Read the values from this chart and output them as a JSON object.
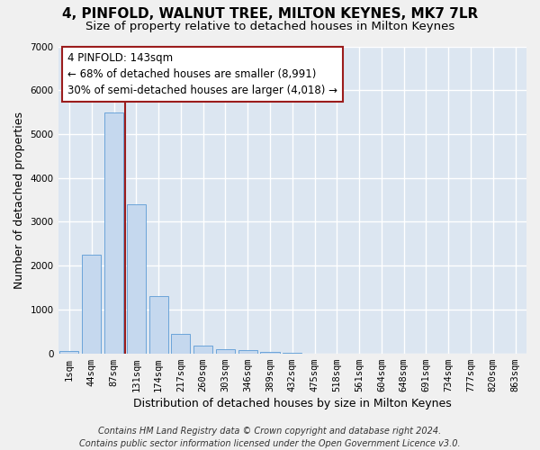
{
  "title": "4, PINFOLD, WALNUT TREE, MILTON KEYNES, MK7 7LR",
  "subtitle": "Size of property relative to detached houses in Milton Keynes",
  "xlabel": "Distribution of detached houses by size in Milton Keynes",
  "ylabel": "Number of detached properties",
  "categories": [
    "1sqm",
    "44sqm",
    "87sqm",
    "131sqm",
    "174sqm",
    "217sqm",
    "260sqm",
    "303sqm",
    "346sqm",
    "389sqm",
    "432sqm",
    "475sqm",
    "518sqm",
    "561sqm",
    "604sqm",
    "648sqm",
    "691sqm",
    "734sqm",
    "777sqm",
    "820sqm",
    "863sqm"
  ],
  "values": [
    50,
    2250,
    5500,
    3400,
    1300,
    450,
    175,
    100,
    75,
    30,
    10,
    0,
    0,
    0,
    0,
    0,
    0,
    0,
    0,
    0,
    0
  ],
  "bar_color": "#c5d8ee",
  "bar_edge_color": "#5b9bd5",
  "vline_x": 2.5,
  "vline_color": "#9b1c1c",
  "annotation_text": "4 PINFOLD: 143sqm\n← 68% of detached houses are smaller (8,991)\n30% of semi-detached houses are larger (4,018) →",
  "annotation_box_facecolor": "#ffffff",
  "annotation_box_edgecolor": "#9b1c1c",
  "ylim": [
    0,
    7000
  ],
  "yticks": [
    0,
    1000,
    2000,
    3000,
    4000,
    5000,
    6000,
    7000
  ],
  "footer_line1": "Contains HM Land Registry data © Crown copyright and database right 2024.",
  "footer_line2": "Contains public sector information licensed under the Open Government Licence v3.0.",
  "plot_bg_color": "#dce6f1",
  "fig_bg_color": "#f0f0f0",
  "grid_color": "#ffffff",
  "title_fontsize": 11,
  "subtitle_fontsize": 9.5,
  "axis_label_fontsize": 9,
  "tick_fontsize": 7.5,
  "annotation_fontsize": 8.5,
  "footer_fontsize": 7
}
